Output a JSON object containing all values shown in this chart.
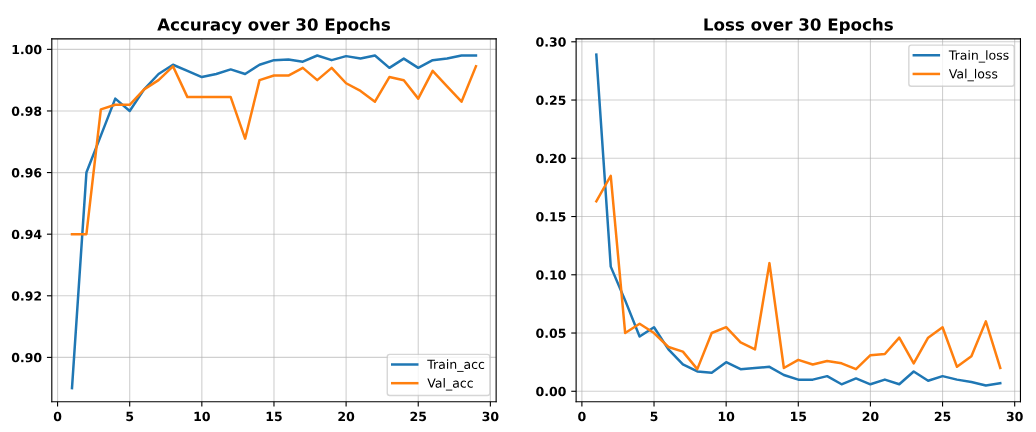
{
  "chart_data": [
    {
      "type": "line",
      "title": "Accuracy over 30 Epochs",
      "x": [
        1,
        2,
        3,
        4,
        5,
        6,
        7,
        8,
        9,
        10,
        11,
        12,
        13,
        14,
        15,
        16,
        17,
        18,
        19,
        20,
        21,
        22,
        23,
        24,
        25,
        26,
        27,
        28,
        29
      ],
      "series": [
        {
          "name": "Train_acc",
          "color": "#1f77b4",
          "values": [
            0.89,
            0.96,
            0.972,
            0.984,
            0.98,
            0.987,
            0.992,
            0.995,
            0.993,
            0.991,
            0.992,
            0.9935,
            0.992,
            0.995,
            0.9965,
            0.9967,
            0.996,
            0.998,
            0.9965,
            0.9978,
            0.997,
            0.998,
            0.994,
            0.997,
            0.994,
            0.9965,
            0.997,
            0.998,
            0.998
          ]
        },
        {
          "name": "Val_acc",
          "color": "#ff7f0e",
          "values": [
            0.94,
            0.94,
            0.9805,
            0.982,
            0.982,
            0.987,
            0.99,
            0.9945,
            0.9845,
            0.9845,
            0.9845,
            0.9845,
            0.971,
            0.99,
            0.9915,
            0.9915,
            0.994,
            0.99,
            0.994,
            0.989,
            0.9865,
            0.983,
            0.991,
            0.99,
            0.984,
            0.993,
            0.988,
            0.983,
            0.9945
          ]
        }
      ],
      "xlim": [
        -0.4,
        30.4
      ],
      "xticks": [
        0,
        5,
        10,
        15,
        20,
        25,
        30
      ],
      "ylim": [
        0.8856,
        1.0034
      ],
      "yticks": [
        {
          "value": 0.9,
          "label": "0.90"
        },
        {
          "value": 0.92,
          "label": "0.92"
        },
        {
          "value": 0.94,
          "label": "0.94"
        },
        {
          "value": 0.96,
          "label": "0.96"
        },
        {
          "value": 0.98,
          "label": "0.98"
        },
        {
          "value": 1.0,
          "label": "1.00"
        }
      ],
      "grid": true,
      "legend": "bottom right"
    },
    {
      "type": "line",
      "title": "Loss over 30 Epochs",
      "x": [
        1,
        2,
        3,
        4,
        5,
        6,
        7,
        8,
        9,
        10,
        11,
        12,
        13,
        14,
        15,
        16,
        17,
        18,
        19,
        20,
        21,
        22,
        23,
        24,
        25,
        26,
        27,
        28,
        29
      ],
      "series": [
        {
          "name": "Train_loss",
          "color": "#1f77b4",
          "values": [
            0.289,
            0.107,
            0.078,
            0.047,
            0.055,
            0.036,
            0.023,
            0.017,
            0.016,
            0.025,
            0.019,
            0.02,
            0.021,
            0.014,
            0.01,
            0.01,
            0.013,
            0.006,
            0.011,
            0.006,
            0.01,
            0.006,
            0.017,
            0.009,
            0.013,
            0.01,
            0.008,
            0.005,
            0.007
          ]
        },
        {
          "name": "Val_loss",
          "color": "#ff7f0e",
          "values": [
            0.163,
            0.185,
            0.05,
            0.058,
            0.05,
            0.038,
            0.034,
            0.019,
            0.05,
            0.055,
            0.042,
            0.036,
            0.11,
            0.02,
            0.027,
            0.023,
            0.026,
            0.024,
            0.019,
            0.031,
            0.032,
            0.046,
            0.024,
            0.046,
            0.055,
            0.021,
            0.03,
            0.06,
            0.02
          ]
        }
      ],
      "xlim": [
        -0.4,
        30.4
      ],
      "xticks": [
        0,
        5,
        10,
        15,
        20,
        25,
        30
      ],
      "ylim": [
        -0.009,
        0.3025
      ],
      "yticks": [
        {
          "value": 0.0,
          "label": "0.00"
        },
        {
          "value": 0.05,
          "label": "0.05"
        },
        {
          "value": 0.1,
          "label": "0.10"
        },
        {
          "value": 0.15,
          "label": "0.15"
        },
        {
          "value": 0.2,
          "label": "0.20"
        },
        {
          "value": 0.25,
          "label": "0.25"
        },
        {
          "value": 0.3,
          "label": "0.30"
        }
      ],
      "grid": true,
      "legend": "top right"
    }
  ]
}
